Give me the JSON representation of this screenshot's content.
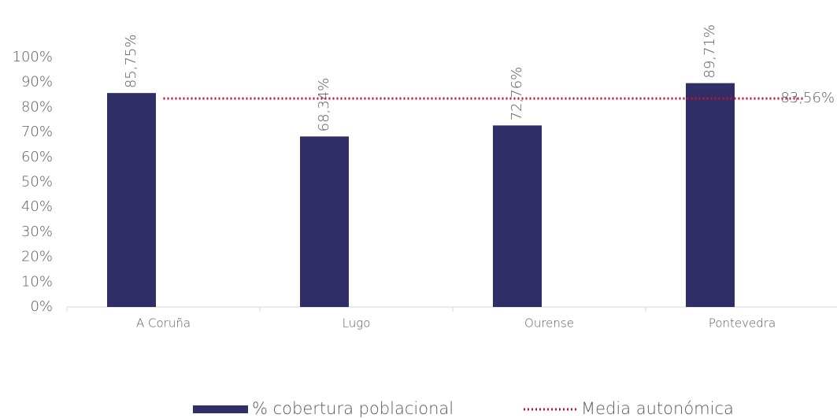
{
  "chart_data": {
    "type": "bar",
    "categories": [
      "A Coruña",
      "Lugo",
      "Ourense",
      "Pontevedra"
    ],
    "series": [
      {
        "name": "% cobertura poblacional",
        "color": "#2f2e67",
        "values": [
          85.75,
          68.34,
          72.76,
          89.71
        ],
        "value_labels": [
          "85,75%",
          "68,34%",
          "72,76%",
          "89,71%"
        ]
      }
    ],
    "reference_line": {
      "name": "Media autonómica",
      "value": 83.56,
      "value_label": "83,56%",
      "color": "#c8102e",
      "style": "dotted"
    },
    "ylim": [
      0,
      100
    ],
    "yticks": [
      {
        "value": 0,
        "label": "0%"
      },
      {
        "value": 10,
        "label": "10%"
      },
      {
        "value": 20,
        "label": "20%"
      },
      {
        "value": 30,
        "label": "30%"
      },
      {
        "value": 40,
        "label": "40%"
      },
      {
        "value": 50,
        "label": "50%"
      },
      {
        "value": 60,
        "label": "60%"
      },
      {
        "value": 70,
        "label": "70%"
      },
      {
        "value": 80,
        "label": "80%"
      },
      {
        "value": 90,
        "label": "90%"
      },
      {
        "value": 100,
        "label": "100%"
      }
    ],
    "legend": "bottom"
  }
}
